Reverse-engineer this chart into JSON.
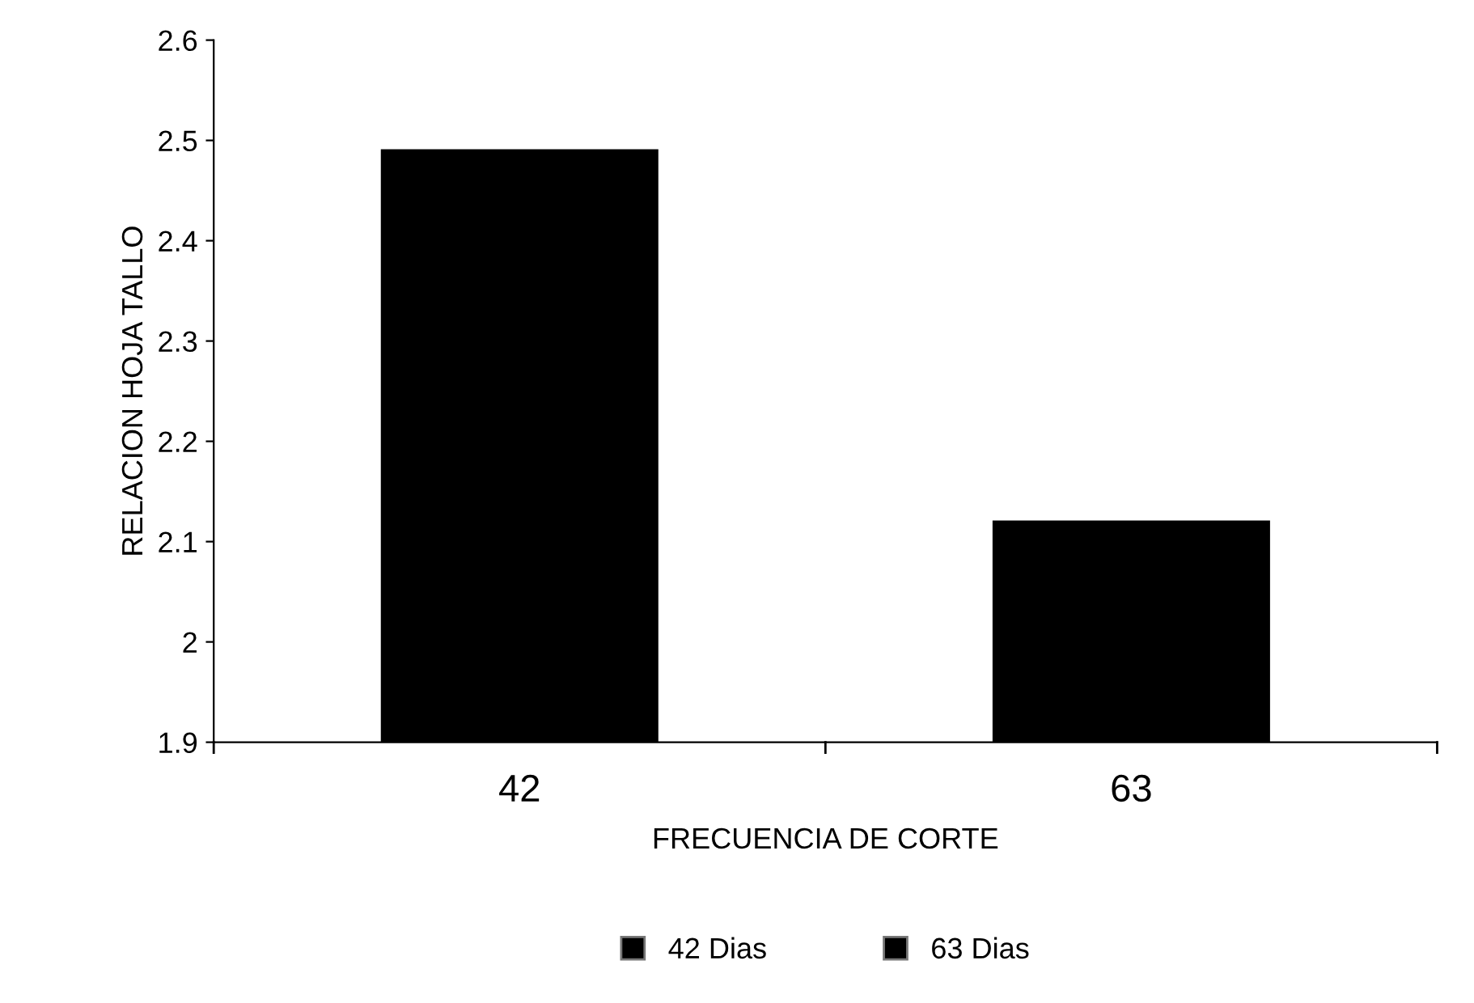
{
  "chart_data": {
    "type": "bar",
    "xlabel": "FRECUENCIA DE CORTE",
    "ylabel": "RELACION HOJA TALLO",
    "categories": [
      "42",
      "63"
    ],
    "series": [
      {
        "name": "42 Dias",
        "color": "#000000",
        "values": [
          2.49,
          null
        ]
      },
      {
        "name": "63 Dias",
        "color": "#000000",
        "values": [
          null,
          2.12
        ]
      }
    ],
    "ylim": [
      1.9,
      2.6
    ],
    "yticks": [
      1.9,
      2,
      2.1,
      2.2,
      2.3,
      2.4,
      2.5,
      2.6
    ],
    "grid": false,
    "legend": "bottom"
  }
}
